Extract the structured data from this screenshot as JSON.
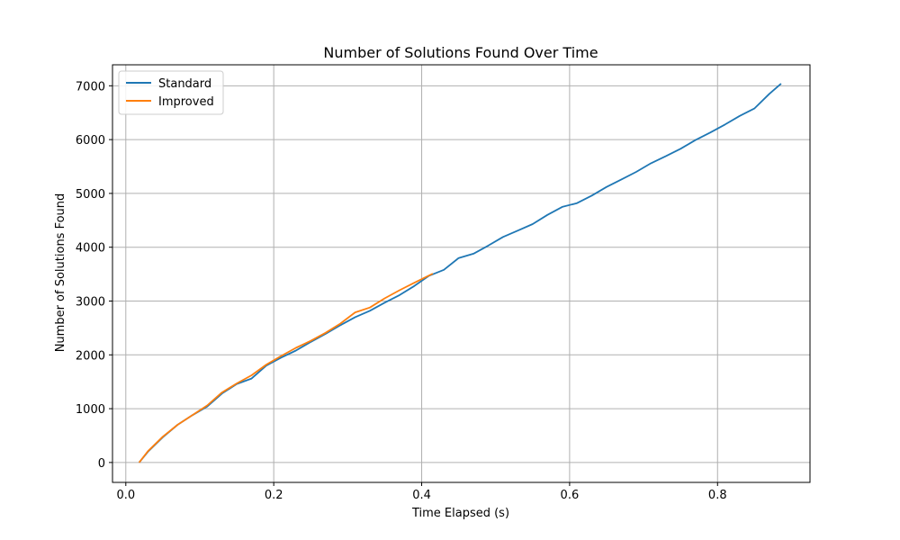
{
  "chart_data": {
    "type": "line",
    "title": "Number of Solutions Found Over Time",
    "xlabel": "Time Elapsed (s)",
    "ylabel": "Number of Solutions Found",
    "xlim": [
      -0.018,
      0.925
    ],
    "ylim": [
      -370,
      7390
    ],
    "xticks": [
      0.0,
      0.2,
      0.4,
      0.6,
      0.8
    ],
    "xtick_labels": [
      "0.0",
      "0.2",
      "0.4",
      "0.6",
      "0.8"
    ],
    "yticks": [
      0,
      1000,
      2000,
      3000,
      4000,
      5000,
      6000,
      7000
    ],
    "ytick_labels": [
      "0",
      "1000",
      "2000",
      "3000",
      "4000",
      "5000",
      "6000",
      "7000"
    ],
    "grid": true,
    "legend": "upper-left",
    "series": [
      {
        "name": "Standard",
        "color": "#1f77b4",
        "x": [
          0.018,
          0.03,
          0.05,
          0.07,
          0.09,
          0.11,
          0.13,
          0.15,
          0.17,
          0.19,
          0.21,
          0.23,
          0.25,
          0.27,
          0.29,
          0.31,
          0.33,
          0.35,
          0.37,
          0.39,
          0.41,
          0.43,
          0.45,
          0.47,
          0.49,
          0.51,
          0.53,
          0.55,
          0.57,
          0.59,
          0.61,
          0.63,
          0.65,
          0.67,
          0.69,
          0.71,
          0.73,
          0.75,
          0.77,
          0.79,
          0.81,
          0.83,
          0.85,
          0.87,
          0.886
        ],
        "y": [
          0,
          200,
          470,
          700,
          880,
          1040,
          1280,
          1460,
          1560,
          1800,
          1950,
          2080,
          2240,
          2390,
          2550,
          2700,
          2820,
          2970,
          3110,
          3280,
          3470,
          3580,
          3800,
          3880,
          4030,
          4190,
          4310,
          4430,
          4600,
          4750,
          4820,
          4960,
          5120,
          5260,
          5400,
          5560,
          5690,
          5830,
          5990,
          6130,
          6280,
          6440,
          6580,
          6850,
          7040
        ]
      },
      {
        "name": "Improved",
        "color": "#ff7f0e",
        "x": [
          0.018,
          0.03,
          0.05,
          0.07,
          0.09,
          0.11,
          0.13,
          0.15,
          0.17,
          0.19,
          0.21,
          0.23,
          0.25,
          0.27,
          0.29,
          0.31,
          0.33,
          0.35,
          0.37,
          0.39,
          0.415
        ],
        "y": [
          0,
          210,
          480,
          700,
          880,
          1060,
          1300,
          1470,
          1620,
          1820,
          1980,
          2130,
          2260,
          2410,
          2580,
          2790,
          2880,
          3050,
          3200,
          3340,
          3510
        ]
      }
    ]
  }
}
